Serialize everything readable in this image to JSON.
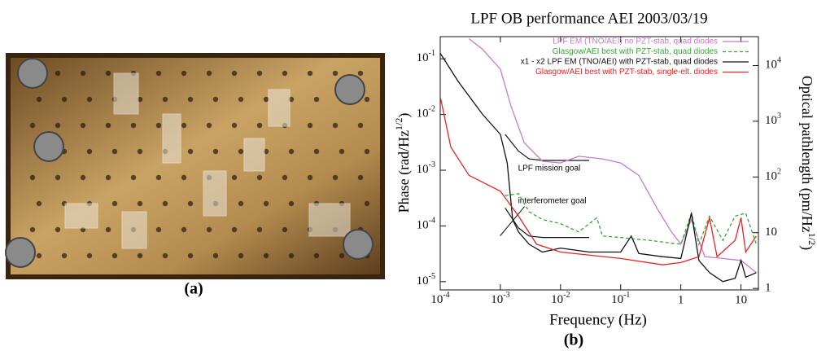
{
  "panel_a": {
    "caption": "(a)"
  },
  "chart_data": {
    "type": "line",
    "caption": "(b)",
    "title": "LPF OB performance AEI 2003/03/19",
    "xlabel": "Frequency (Hz)",
    "ylabel": [
      "Phase (rad/Hz",
      "1/2",
      ")"
    ],
    "y2label": [
      "Optical pathlength (pm/Hz",
      "1/2",
      ")"
    ],
    "xscale": "log",
    "yscale": "log",
    "y2scale": "log",
    "xlim": [
      0.0001,
      19.5
    ],
    "ylim": [
      7.1e-06,
      0.25
    ],
    "y2lim": [
      0.94,
      33000
    ],
    "xticks": [
      {
        "value": 0.0001,
        "label": "10-4"
      },
      {
        "value": 0.001,
        "label": "10-3"
      },
      {
        "value": 0.01,
        "label": "10-2"
      },
      {
        "value": 0.1,
        "label": "10-1"
      },
      1,
      10
    ],
    "yticks": [
      {
        "value": 1e-05,
        "label": "10-5"
      },
      {
        "value": 0.0001,
        "label": "10-4"
      },
      {
        "value": 0.001,
        "label": "10-3"
      },
      {
        "value": 0.01,
        "label": "10-2"
      },
      {
        "value": 0.1,
        "label": "10-1"
      }
    ],
    "y2ticks": [
      1,
      10,
      {
        "value": 100,
        "label": "102"
      },
      {
        "value": 1000,
        "label": "103"
      },
      {
        "value": 10000,
        "label": "104"
      }
    ],
    "legend": "top right",
    "series": [
      {
        "name": "LPF EM (TNO/AEI) no PZT-stab, quad diodes",
        "color": "#cc77cc",
        "linestyle": "solid",
        "x": [
          0.0003,
          0.0005,
          0.001,
          0.0015,
          0.0025,
          0.005,
          0.01,
          0.02,
          0.05,
          0.1,
          0.2,
          0.4,
          0.7,
          1,
          1.5,
          2.5,
          5,
          10,
          18
        ],
        "values": [
          0.23,
          0.15,
          0.065,
          0.0142,
          0.0031,
          0.00145,
          0.00135,
          0.00178,
          0.0016,
          0.00135,
          0.00081,
          0.00021,
          7.8e-05,
          4.7e-05,
          0.00013,
          2.8e-05,
          2.6e-05,
          2.4e-05,
          1.45e-05
        ]
      },
      {
        "name": "Glasgow/AEI best with PZT-stab, quad diodes",
        "color": "#33aa33",
        "linestyle": "dashed",
        "x": [
          0.0012,
          0.002,
          0.003,
          0.005,
          0.01,
          0.02,
          0.04,
          0.05,
          0.1,
          0.3,
          1,
          1.5,
          2,
          3,
          5,
          8,
          12,
          18
        ],
        "values": [
          0.00035,
          0.00038,
          0.00018,
          0.00013,
          0.00011,
          7.8e-05,
          0.00014,
          6.6e-05,
          6.2e-05,
          5.5e-05,
          4.7e-05,
          0.00017,
          4.7e-05,
          0.00015,
          5.5e-05,
          0.00015,
          0.00017,
          4.7e-05
        ]
      },
      {
        "name": "x1 - x2 LPF EM (TNO/AEI) with PZT-stab, quad diodes",
        "color": "#111111",
        "linestyle": "solid",
        "x": [
          0.0001,
          0.0002,
          0.0005,
          0.001,
          0.0013,
          0.0016,
          0.002,
          0.003,
          0.005,
          0.01,
          0.03,
          0.1,
          0.15,
          0.2,
          0.5,
          1,
          1.5,
          2,
          3,
          5,
          8,
          10,
          12,
          18
        ],
        "values": [
          0.126,
          0.039,
          0.0102,
          0.0044,
          0.00135,
          0.00013,
          7.8e-05,
          4.7e-05,
          3.4e-05,
          4e-05,
          3.4e-05,
          3.4e-05,
          6.6e-05,
          3.2e-05,
          2.8e-05,
          2.6e-05,
          0.00017,
          2.4e-05,
          1.45e-05,
          1e-05,
          1.15e-05,
          2.4e-05,
          1.2e-05,
          1.45e-05
        ]
      },
      {
        "name": "Glasgow/AEI best with PZT-stab, single-elt. diodes",
        "color": "#ee2222",
        "linestyle": "solid",
        "x": [
          0.0001,
          0.00015,
          0.0003,
          0.001,
          0.002,
          0.004,
          0.01,
          0.1,
          0.5,
          1,
          2,
          3,
          4,
          8,
          10,
          12,
          18
        ],
        "values": [
          0.021,
          0.0026,
          0.00081,
          0.00042,
          0.00015,
          4.7e-05,
          3.4e-05,
          2.6e-05,
          2e-05,
          2.2e-05,
          2.8e-05,
          0.00014,
          2.8e-05,
          5.5e-05,
          0.00014,
          3.4e-05,
          6.6e-05
        ]
      }
    ],
    "annotations": [
      {
        "text": "LPF mission goal",
        "x": [
          0.0012,
          0.002,
          0.003,
          0.005,
          0.03
        ],
        "values": [
          0.0044,
          0.0022,
          0.0016,
          0.0015,
          0.0015
        ]
      },
      {
        "text": "interferometer goal",
        "x": [
          0.0012,
          0.002,
          0.003,
          0.005,
          0.03
        ],
        "values": [
          0.00021,
          9.2e-05,
          6.6e-05,
          6.2e-05,
          6.2e-05
        ]
      }
    ]
  }
}
